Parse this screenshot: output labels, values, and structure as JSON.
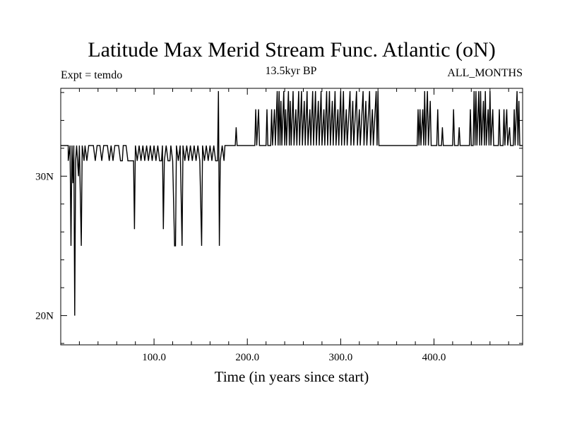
{
  "chart_data": {
    "type": "line",
    "title": "Latitude Max Merid Stream Func. Atlantic (oN)",
    "subtitle_left": "Expt = temdo",
    "subtitle_center": "13.5kyr BP",
    "subtitle_right": "ALL_MONTHS",
    "xlabel": "Time (in years since start)",
    "ylabel": "",
    "xlim": [
      0,
      495
    ],
    "ylim": [
      17.9,
      36.3
    ],
    "x_ticks": [
      100,
      200,
      300,
      400
    ],
    "x_tick_labels": [
      "100.0",
      "",
      "300.0",
      "400.0"
    ],
    "x_tick_label_200": "200.0",
    "y_ticks": [
      20,
      30
    ],
    "y_tick_labels": [
      "20N",
      "30N"
    ],
    "grid": false,
    "series": [
      {
        "values_note": "",
        "points": [
          [
            0,
            32.2
          ],
          [
            8,
            32.2
          ],
          [
            8,
            31.1
          ],
          [
            10,
            32.2
          ],
          [
            11,
            25.0
          ],
          [
            12,
            32.2
          ],
          [
            13,
            29.5
          ],
          [
            14,
            32.2
          ],
          [
            15,
            20.0
          ],
          [
            16,
            31.1
          ],
          [
            17,
            32.2
          ],
          [
            19,
            30.0
          ],
          [
            20,
            32.2
          ],
          [
            22,
            25.0
          ],
          [
            23,
            32.2
          ],
          [
            25,
            31.1
          ],
          [
            26,
            32.2
          ],
          [
            28,
            31.1
          ],
          [
            30,
            32.2
          ],
          [
            35,
            32.2
          ],
          [
            37,
            31.1
          ],
          [
            39,
            32.2
          ],
          [
            42,
            32.2
          ],
          [
            44,
            31.1
          ],
          [
            46,
            32.2
          ],
          [
            50,
            32.2
          ],
          [
            52,
            31.1
          ],
          [
            54,
            32.2
          ],
          [
            56,
            31.1
          ],
          [
            58,
            32.2
          ],
          [
            62,
            32.2
          ],
          [
            64,
            31.1
          ],
          [
            66,
            31.1
          ],
          [
            67,
            32.2
          ],
          [
            70,
            32.2
          ],
          [
            72,
            31.1
          ],
          [
            78,
            31.1
          ],
          [
            79,
            26.2
          ],
          [
            80,
            32.2
          ],
          [
            82,
            31.1
          ],
          [
            84,
            32.2
          ],
          [
            86,
            31.1
          ],
          [
            88,
            32.2
          ],
          [
            90,
            31.1
          ],
          [
            92,
            32.2
          ],
          [
            94,
            31.1
          ],
          [
            96,
            32.2
          ],
          [
            98,
            31.1
          ],
          [
            100,
            32.2
          ],
          [
            102,
            31.1
          ],
          [
            104,
            32.2
          ],
          [
            106,
            31.1
          ],
          [
            108,
            31.1
          ],
          [
            109,
            32.2
          ],
          [
            110,
            26.2
          ],
          [
            111,
            31.1
          ],
          [
            113,
            32.2
          ],
          [
            115,
            31.1
          ],
          [
            117,
            31.1
          ],
          [
            118,
            32.2
          ],
          [
            120,
            31.1
          ],
          [
            122,
            25.0
          ],
          [
            123,
            25.0
          ],
          [
            124,
            32.2
          ],
          [
            126,
            31.1
          ],
          [
            128,
            32.2
          ],
          [
            130,
            25.0
          ],
          [
            131,
            32.2
          ],
          [
            133,
            31.1
          ],
          [
            135,
            32.2
          ],
          [
            137,
            31.1
          ],
          [
            139,
            32.2
          ],
          [
            141,
            31.1
          ],
          [
            143,
            32.2
          ],
          [
            145,
            31.1
          ],
          [
            147,
            32.2
          ],
          [
            149,
            31.1
          ],
          [
            151,
            25.0
          ],
          [
            152,
            32.2
          ],
          [
            154,
            31.1
          ],
          [
            156,
            32.2
          ],
          [
            158,
            31.1
          ],
          [
            160,
            32.2
          ],
          [
            162,
            31.1
          ],
          [
            164,
            32.2
          ],
          [
            166,
            31.1
          ],
          [
            168,
            31.1
          ],
          [
            169,
            36.1
          ],
          [
            170,
            25.0
          ],
          [
            171,
            31.1
          ],
          [
            173,
            32.2
          ],
          [
            175,
            31.1
          ],
          [
            176,
            32.2
          ],
          [
            178,
            32.2
          ],
          [
            187,
            32.2
          ],
          [
            188,
            33.5
          ],
          [
            189,
            32.2
          ],
          [
            208,
            32.2
          ],
          [
            209,
            34.8
          ],
          [
            210,
            32.2
          ],
          [
            212,
            34.8
          ],
          [
            213,
            32.2
          ],
          [
            220,
            32.2
          ],
          [
            221,
            34.8
          ],
          [
            222,
            32.2
          ],
          [
            225,
            32.2
          ],
          [
            226,
            34.8
          ],
          [
            227,
            32.2
          ],
          [
            229,
            34.8
          ],
          [
            230,
            32.2
          ],
          [
            232,
            36.1
          ],
          [
            233,
            32.2
          ],
          [
            234,
            36.1
          ],
          [
            235,
            32.2
          ],
          [
            236,
            35.4
          ],
          [
            237,
            32.2
          ],
          [
            239,
            36.1
          ],
          [
            240,
            32.2
          ],
          [
            241,
            34.8
          ],
          [
            242,
            32.2
          ],
          [
            244,
            36.1
          ],
          [
            245,
            32.2
          ],
          [
            246,
            35.4
          ],
          [
            247,
            32.2
          ],
          [
            249,
            36.1
          ],
          [
            250,
            32.2
          ],
          [
            252,
            34.8
          ],
          [
            253,
            32.2
          ],
          [
            255,
            36.1
          ],
          [
            256,
            32.2
          ],
          [
            258,
            36.1
          ],
          [
            259,
            32.2
          ],
          [
            261,
            35.4
          ],
          [
            262,
            32.2
          ],
          [
            264,
            36.1
          ],
          [
            265,
            32.2
          ],
          [
            267,
            34.8
          ],
          [
            268,
            32.2
          ],
          [
            270,
            36.1
          ],
          [
            271,
            32.2
          ],
          [
            273,
            36.1
          ],
          [
            274,
            32.2
          ],
          [
            276,
            35.4
          ],
          [
            277,
            32.2
          ],
          [
            279,
            36.1
          ],
          [
            280,
            32.2
          ],
          [
            282,
            34.8
          ],
          [
            283,
            32.2
          ],
          [
            285,
            36.1
          ],
          [
            286,
            32.2
          ],
          [
            288,
            36.1
          ],
          [
            289,
            32.2
          ],
          [
            291,
            35.4
          ],
          [
            292,
            32.2
          ],
          [
            294,
            36.1
          ],
          [
            295,
            32.2
          ],
          [
            297,
            34.8
          ],
          [
            298,
            32.2
          ],
          [
            300,
            36.1
          ],
          [
            301,
            32.2
          ],
          [
            303,
            36.1
          ],
          [
            304,
            32.2
          ],
          [
            306,
            34.8
          ],
          [
            307,
            32.2
          ],
          [
            310,
            36.1
          ],
          [
            311,
            32.2
          ],
          [
            313,
            35.4
          ],
          [
            314,
            32.2
          ],
          [
            317,
            36.1
          ],
          [
            318,
            32.2
          ],
          [
            320,
            34.8
          ],
          [
            321,
            32.2
          ],
          [
            324,
            36.1
          ],
          [
            325,
            32.2
          ],
          [
            327,
            35.4
          ],
          [
            328,
            32.2
          ],
          [
            331,
            36.1
          ],
          [
            332,
            32.2
          ],
          [
            334,
            34.8
          ],
          [
            335,
            32.2
          ],
          [
            338,
            36.1
          ],
          [
            339,
            32.2
          ],
          [
            340,
            36.1
          ],
          [
            341,
            32.2
          ],
          [
            343,
            32.2
          ],
          [
            382,
            32.2
          ],
          [
            383,
            34.8
          ],
          [
            384,
            32.2
          ],
          [
            385,
            34.8
          ],
          [
            386,
            32.2
          ],
          [
            388,
            34.8
          ],
          [
            389,
            32.2
          ],
          [
            390,
            36.1
          ],
          [
            391,
            32.2
          ],
          [
            393,
            36.1
          ],
          [
            394,
            32.2
          ],
          [
            396,
            35.4
          ],
          [
            397,
            32.2
          ],
          [
            403,
            32.2
          ],
          [
            404,
            34.8
          ],
          [
            405,
            32.2
          ],
          [
            408,
            32.2
          ],
          [
            409,
            33.5
          ],
          [
            410,
            32.2
          ],
          [
            420,
            32.2
          ],
          [
            421,
            34.8
          ],
          [
            422,
            32.2
          ],
          [
            426,
            32.2
          ],
          [
            427,
            33.5
          ],
          [
            428,
            32.2
          ],
          [
            438,
            32.2
          ],
          [
            439,
            34.8
          ],
          [
            440,
            32.2
          ],
          [
            442,
            32.2
          ],
          [
            443,
            36.1
          ],
          [
            444,
            32.2
          ],
          [
            445,
            36.1
          ],
          [
            446,
            32.2
          ],
          [
            448,
            36.1
          ],
          [
            449,
            32.2
          ],
          [
            450,
            36.1
          ],
          [
            451,
            32.2
          ],
          [
            453,
            35.4
          ],
          [
            454,
            32.2
          ],
          [
            455,
            36.1
          ],
          [
            456,
            32.2
          ],
          [
            458,
            34.8
          ],
          [
            459,
            32.2
          ],
          [
            460,
            36.1
          ],
          [
            461,
            32.2
          ],
          [
            463,
            34.8
          ],
          [
            464,
            32.2
          ],
          [
            469,
            32.2
          ],
          [
            470,
            34.8
          ],
          [
            471,
            32.2
          ],
          [
            474,
            32.2
          ],
          [
            475,
            34.8
          ],
          [
            476,
            32.2
          ],
          [
            478,
            34.8
          ],
          [
            479,
            32.2
          ],
          [
            481,
            33.5
          ],
          [
            482,
            32.2
          ],
          [
            485,
            32.2
          ],
          [
            486,
            34.8
          ],
          [
            487,
            32.2
          ],
          [
            489,
            36.1
          ],
          [
            490,
            32.2
          ],
          [
            491,
            35.4
          ],
          [
            492,
            32.2
          ],
          [
            495,
            32.2
          ]
        ]
      }
    ]
  }
}
